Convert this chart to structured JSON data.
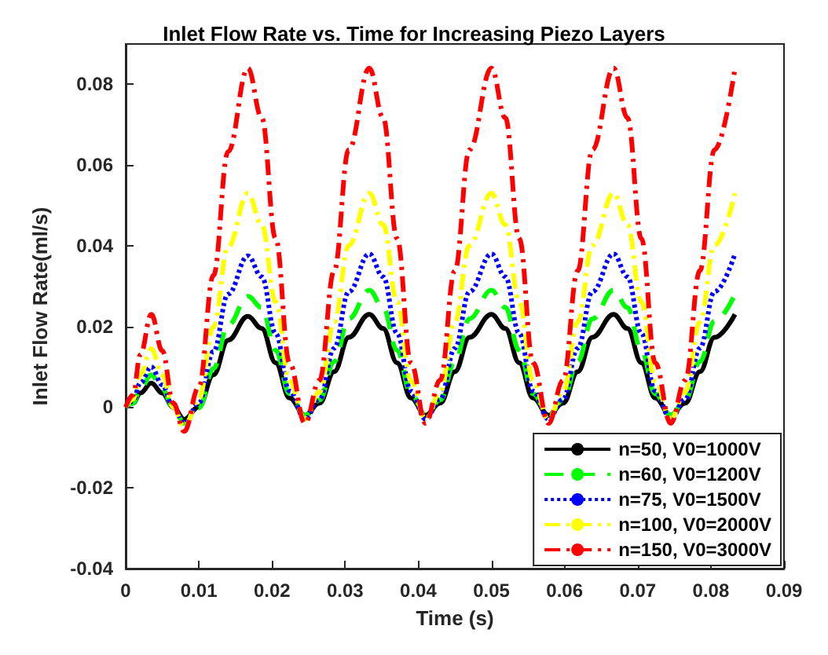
{
  "chart_data": {
    "type": "line",
    "title": "Inlet Flow Rate vs. Time for Increasing Piezo Layers",
    "xlabel": "Time (s)",
    "ylabel": "Inlet Flow Rate(ml/s)",
    "x": [
      0,
      0.001,
      0.002,
      0.0035,
      0.005,
      0.0065,
      0.008,
      0.01,
      0.012,
      0.014,
      0.0167,
      0.0186,
      0.0205,
      0.0224,
      0.0245,
      0.0265,
      0.0285,
      0.0305,
      0.0333,
      0.0352,
      0.0371,
      0.039,
      0.041,
      0.043,
      0.045,
      0.047,
      0.05,
      0.0519,
      0.0538,
      0.0557,
      0.0578,
      0.0598,
      0.0618,
      0.0638,
      0.0667,
      0.0686,
      0.0705,
      0.0724,
      0.0745,
      0.0765,
      0.0785,
      0.0805,
      0.0833
    ],
    "series": [
      {
        "name": "n=50, V0=1000V",
        "color": "#000000",
        "line_style": "solid",
        "values": [
          0,
          0.001,
          0.0035,
          0.006,
          0.0035,
          0,
          -0.003,
          0.0001,
          0.008,
          0.0166,
          0.0225,
          0.0195,
          0.011,
          0.0023,
          -0.002,
          0.001,
          0.0088,
          0.0173,
          0.023,
          0.0195,
          0.011,
          0.0023,
          -0.002,
          0.001,
          0.0088,
          0.0173,
          0.023,
          0.0195,
          0.011,
          0.0023,
          -0.002,
          0.001,
          0.0088,
          0.0173,
          0.023,
          0.0195,
          0.011,
          0.0023,
          -0.002,
          0.001,
          0.0088,
          0.0173,
          0.023
        ]
      },
      {
        "name": "n=60, V0=1200V",
        "color": "#00ff00",
        "line_style": "dashed",
        "values": [
          0,
          0.001,
          0.0045,
          0.008,
          0.0045,
          0,
          -0.004,
          -0.0002,
          0.0096,
          0.0203,
          0.0275,
          0.0247,
          0.0141,
          0.0033,
          -0.002,
          0.0018,
          0.0113,
          0.0219,
          0.029,
          0.0247,
          0.0141,
          0.0033,
          -0.002,
          0.0018,
          0.0113,
          0.0219,
          0.029,
          0.0247,
          0.0141,
          0.0033,
          -0.002,
          0.0018,
          0.0113,
          0.0219,
          0.029,
          0.0247,
          0.0141,
          0.0033,
          -0.002,
          0.0018,
          0.0113,
          0.0213,
          0.028
        ]
      },
      {
        "name": "n=75, V0=1500V",
        "color": "#0000ff",
        "line_style": "dotted",
        "values": [
          0,
          0.0015,
          0.006,
          0.01,
          0.0055,
          0,
          -0.004,
          0.001,
          0.0138,
          0.028,
          0.0375,
          0.0323,
          0.0183,
          0.004,
          -0.003,
          0.002,
          0.0146,
          0.0286,
          0.038,
          0.0323,
          0.0183,
          0.004,
          -0.003,
          0.002,
          0.0146,
          0.0286,
          0.038,
          0.0323,
          0.0183,
          0.004,
          -0.003,
          0.002,
          0.0146,
          0.0286,
          0.038,
          0.0323,
          0.0183,
          0.004,
          -0.003,
          0.002,
          0.0146,
          0.0286,
          0.038
        ]
      },
      {
        "name": "n=100, V0=2000V",
        "color": "#ffff00",
        "line_style": "dashdot",
        "values": [
          0,
          0.002,
          0.008,
          0.0145,
          0.008,
          0,
          -0.005,
          0.0021,
          0.0199,
          0.0397,
          0.053,
          0.0452,
          0.0261,
          0.0065,
          -0.003,
          0.0038,
          0.0211,
          0.0401,
          0.053,
          0.0452,
          0.0261,
          0.0065,
          -0.003,
          0.0038,
          0.0211,
          0.0401,
          0.053,
          0.0452,
          0.0261,
          0.0065,
          -0.003,
          0.0038,
          0.0211,
          0.0401,
          0.053,
          0.0452,
          0.0261,
          0.0065,
          -0.003,
          0.0038,
          0.0211,
          0.0401,
          0.053
        ]
      },
      {
        "name": "n=150, V0=3000V",
        "color": "#ff0000",
        "line_style": "dashdot",
        "values": [
          0,
          0.003,
          0.013,
          0.023,
          0.014,
          0.001,
          -0.006,
          0.005,
          0.0327,
          0.0633,
          0.084,
          0.0717,
          0.0418,
          0.011,
          -0.004,
          0.0067,
          0.0338,
          0.0638,
          0.084,
          0.0717,
          0.0418,
          0.011,
          -0.004,
          0.0067,
          0.0338,
          0.0638,
          0.084,
          0.0717,
          0.0418,
          0.011,
          -0.004,
          0.0067,
          0.0338,
          0.0638,
          0.084,
          0.0717,
          0.0418,
          0.011,
          -0.004,
          0.0067,
          0.0338,
          0.0638,
          0.084
        ]
      }
    ],
    "xlim": [
      0,
      0.09
    ],
    "xticks": [
      0,
      0.01,
      0.02,
      0.03,
      0.04,
      0.05,
      0.06,
      0.07,
      0.08,
      0.09
    ],
    "ylim": [
      -0.04,
      0.09
    ],
    "yticks": [
      -0.04,
      -0.02,
      0,
      0.02,
      0.04,
      0.06,
      0.08
    ],
    "grid": false,
    "legend": "bottom right",
    "marker": "none"
  }
}
